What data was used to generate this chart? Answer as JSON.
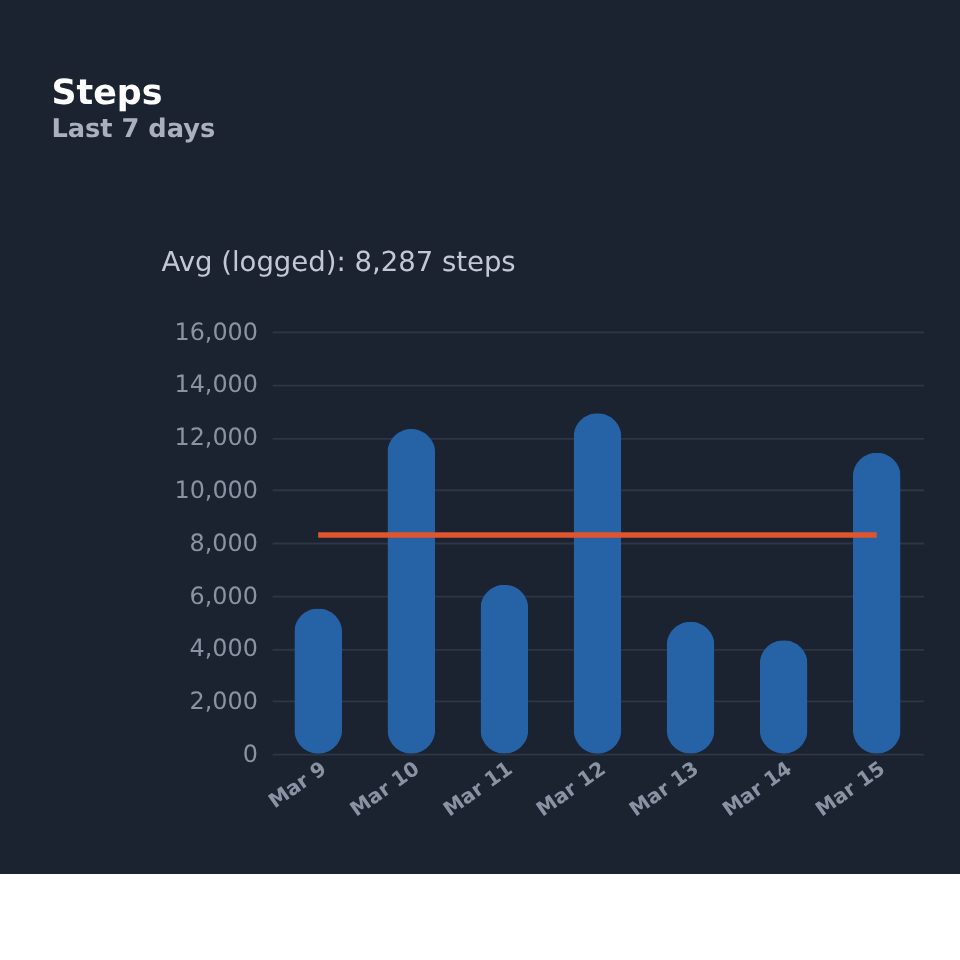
{
  "chart_data": {
    "type": "bar",
    "title": "Steps",
    "subtitle": "Last 7 days",
    "annotations": [
      "Avg (logged): 8,287 steps"
    ],
    "categories": [
      "Mar 9",
      "Mar 10",
      "Mar 11",
      "Mar 12",
      "Mar 13",
      "Mar 14",
      "Mar 15"
    ],
    "values": [
      5500,
      12300,
      6400,
      12900,
      5000,
      4300,
      11400
    ],
    "color": "#2563a6",
    "ylim": [
      0,
      16000
    ],
    "yticks": [
      0,
      {
        "value": 2000,
        "label": "2,000"
      },
      {
        "value": 4000,
        "label": "4,000"
      },
      {
        "value": 6000,
        "label": "6,000"
      },
      {
        "value": 8000,
        "label": "8,000"
      },
      {
        "value": 10000,
        "label": "10,000"
      },
      {
        "value": 12000,
        "label": "12,000"
      },
      {
        "value": 14000,
        "label": "14,000"
      },
      {
        "value": 16000,
        "label": "16,000"
      }
    ],
    "ref_lines": [
      {
        "axis": "y",
        "value": 8287,
        "color": "#e0552d"
      }
    ],
    "grid": "y"
  }
}
